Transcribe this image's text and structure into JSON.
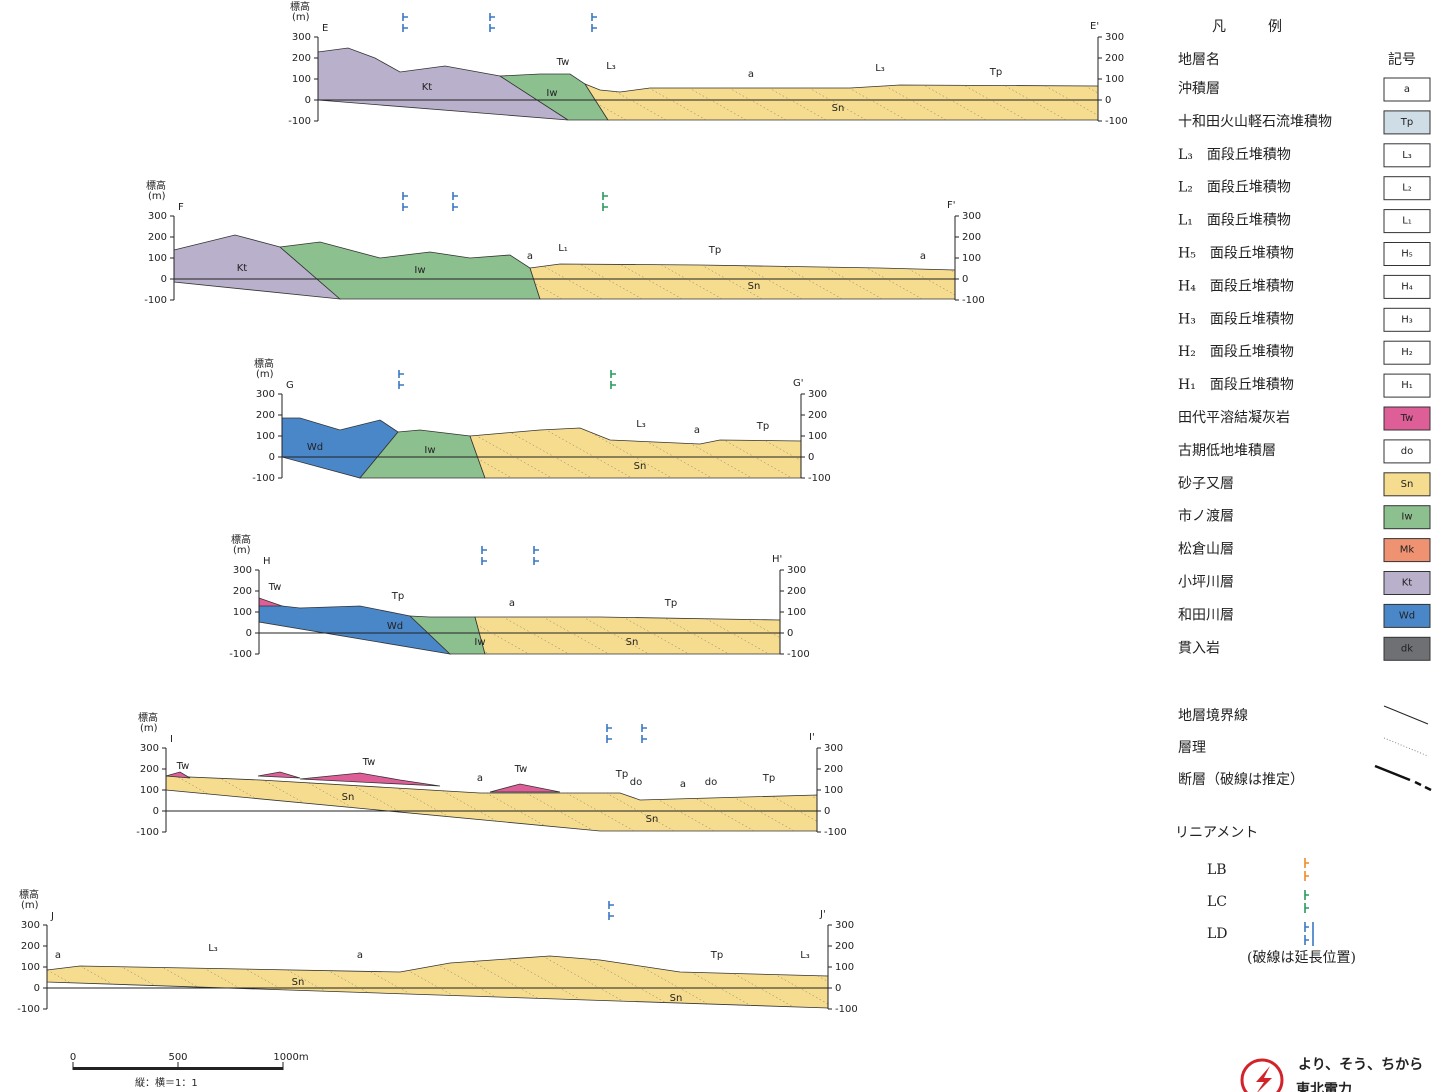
{
  "axis_title": "標高",
  "axis_unit": "(m)",
  "elevation_ticks": [
    "300",
    "200",
    "100",
    "0",
    "-100"
  ],
  "sections": [
    {
      "left_label": "E",
      "right_label": "E'",
      "layer_labels": [
        "Kt",
        "Iw",
        "Tw",
        "L₃",
        "a",
        "L₃",
        "Tp",
        "Sn"
      ]
    },
    {
      "left_label": "F",
      "right_label": "F'",
      "layer_labels": [
        "Kt",
        "Iw",
        "a",
        "L₁",
        "Tp",
        "a",
        "Sn"
      ]
    },
    {
      "left_label": "G",
      "right_label": "G'",
      "layer_labels": [
        "Wd",
        "Iw",
        "L₃",
        "a",
        "Tp",
        "Sn"
      ]
    },
    {
      "left_label": "H",
      "right_label": "H'",
      "layer_labels": [
        "Tw",
        "Tp",
        "Wd",
        "a",
        "Iw",
        "Tp",
        "Sn"
      ]
    },
    {
      "left_label": "I",
      "right_label": "I'",
      "layer_labels": [
        "Tw",
        "Tw",
        "Sn",
        "a",
        "Tw",
        "Tp",
        "do",
        "a",
        "do",
        "Tp",
        "Sn"
      ]
    },
    {
      "left_label": "J",
      "right_label": "J'",
      "layer_labels": [
        "a",
        "L₃",
        "a",
        "Sn",
        "Tp",
        "L₃",
        "Sn"
      ]
    }
  ],
  "legend": {
    "title": "凡　　　例",
    "name_header": "地層名",
    "symbol_header": "記号",
    "rows": [
      [
        "沖積層",
        "a"
      ],
      [
        "十和田火山軽石流堆積物",
        "Tp"
      ],
      [
        "L₃　面段丘堆積物",
        "L₃"
      ],
      [
        "L₂　面段丘堆積物",
        "L₂"
      ],
      [
        "L₁　面段丘堆積物",
        "L₁"
      ],
      [
        "H₅　面段丘堆積物",
        "H₅"
      ],
      [
        "H₄　面段丘堆積物",
        "H₄"
      ],
      [
        "H₃　面段丘堆積物",
        "H₃"
      ],
      [
        "H₂　面段丘堆積物",
        "H₂"
      ],
      [
        "H₁　面段丘堆積物",
        "H₁"
      ],
      [
        "田代平溶結凝灰岩",
        "Tw"
      ],
      [
        "古期低地堆積層",
        "do"
      ],
      [
        "砂子又層",
        "Sn"
      ],
      [
        "市ノ渡層",
        "Iw"
      ],
      [
        "松倉山層",
        "Mk"
      ],
      [
        "小坪川層",
        "Kt"
      ],
      [
        "和田川層",
        "Wd"
      ],
      [
        "貫入岩",
        "dk"
      ]
    ],
    "lines": [
      "地層境界線",
      "層理",
      "断層（破線は推定）"
    ],
    "lineament_title": "リニアメント",
    "lineaments": [
      "LB",
      "LC",
      "LD"
    ],
    "lineament_note": "(破線は延長位置)"
  },
  "scale_bar": {
    "labels": [
      "0",
      "500",
      "1000m"
    ],
    "ratio": "縦：横＝1：1"
  },
  "logo": {
    "tagline": "より、そう、ちから",
    "name": "東北電力"
  }
}
